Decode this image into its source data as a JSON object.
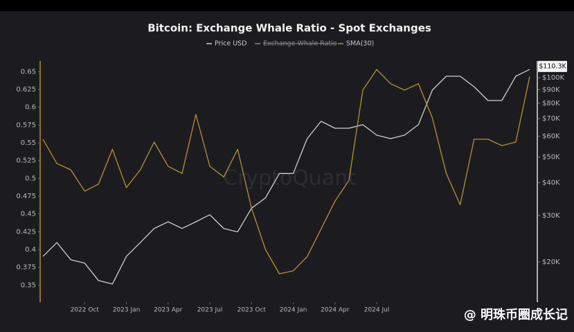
{
  "chart_data": {
    "type": "line",
    "title": "Bitcoin: Exchange Whale Ratio - Spot Exchanges",
    "x": [
      "2022-07",
      "2022-08",
      "2022-09",
      "2022-10",
      "2022-11",
      "2022-12",
      "2023-01",
      "2023-02",
      "2023-03",
      "2023-04",
      "2023-05",
      "2023-06",
      "2023-07",
      "2023-08",
      "2023-09",
      "2023-10",
      "2023-11",
      "2023-12",
      "2024-01",
      "2024-02",
      "2024-03",
      "2024-04",
      "2024-05",
      "2024-06",
      "2024-07",
      "2024-08",
      "2024-09",
      "2024-10",
      "2024-11",
      "2024-12",
      "2025-01",
      "2025-02",
      "2025-03",
      "2025-04",
      "2025-05",
      "2025-06"
    ],
    "xlim": [
      "2022-07",
      "2025-06"
    ],
    "xticks": [
      {
        "value": "2022-10",
        "label": "2022 Oct"
      },
      {
        "value": "2023-01",
        "label": "2023 Jan"
      },
      {
        "value": "2023-04",
        "label": "2023 Apr"
      },
      {
        "value": "2023-07",
        "label": "2023 Jul"
      },
      {
        "value": "2023-10",
        "label": "2023 Oct"
      },
      {
        "value": "2024-01",
        "label": "2024 Jan"
      },
      {
        "value": "2024-04",
        "label": "2024 Apr"
      },
      {
        "value": "2024-07",
        "label": "2024 Jul"
      }
    ],
    "series": [
      {
        "name": "Price USD",
        "color": "#d0d0d0",
        "axis": "y2",
        "values": [
          21000,
          23700,
          20400,
          19800,
          17000,
          16500,
          21000,
          23700,
          26800,
          28400,
          26800,
          28400,
          30200,
          26800,
          26000,
          32000,
          35000,
          43300,
          43300,
          58700,
          68300,
          64300,
          64300,
          66300,
          60500,
          58700,
          60500,
          66300,
          89700,
          101200,
          101200,
          92400,
          81900,
          81900,
          101200,
          107500
        ]
      },
      {
        "name": "SMA(30)",
        "color": "#b8922e",
        "values": [
          0.555,
          0.521,
          0.512,
          0.482,
          0.492,
          0.541,
          0.487,
          0.512,
          0.551,
          0.517,
          0.507,
          0.59,
          0.517,
          0.502,
          0.541,
          0.458,
          0.4,
          0.366,
          0.37,
          0.39,
          0.429,
          0.468,
          0.497,
          0.624,
          0.653,
          0.633,
          0.624,
          0.633,
          0.585,
          0.507,
          0.463,
          0.555,
          0.555,
          0.546,
          0.551,
          0.643
        ]
      }
    ],
    "hidden_series": {
      "name": "Exchange Whale Ratio",
      "color": "#8a8a8a"
    },
    "ylim": [
      0.327,
      0.663
    ],
    "yticks": [
      0.35,
      0.375,
      0.4,
      0.425,
      0.45,
      0.475,
      0.5,
      0.525,
      0.55,
      0.575,
      0.6,
      0.625,
      0.65
    ],
    "y2lim": [
      14160,
      114250
    ],
    "y2_log": true,
    "y2ticks": [
      {
        "value": 20000,
        "label": "$20K"
      },
      {
        "value": 30000,
        "label": "$30K"
      },
      {
        "value": 40000,
        "label": "$40K"
      },
      {
        "value": 50000,
        "label": "$50K"
      },
      {
        "value": 60000,
        "label": "$60K"
      },
      {
        "value": 70000,
        "label": "$70K"
      },
      {
        "value": 80000,
        "label": "$80K"
      },
      {
        "value": 90000,
        "label": "$90K"
      },
      {
        "value": 100000,
        "label": "$100K"
      }
    ],
    "last_value_label": {
      "value": 110300,
      "label": "$110.3K"
    },
    "watermark": "CryptoQuant",
    "source_watermark": "@ 明珠币圈成长记"
  }
}
